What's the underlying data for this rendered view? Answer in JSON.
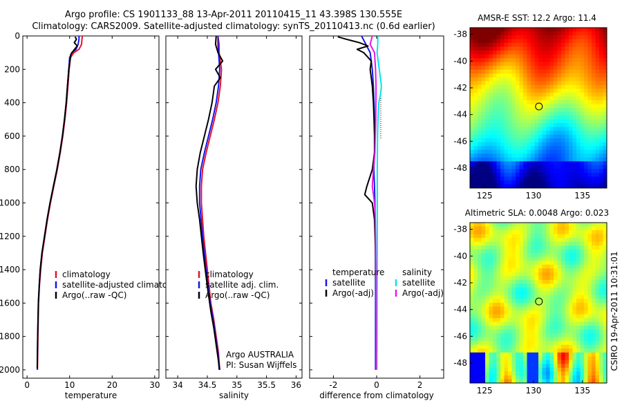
{
  "figure": {
    "title_line1": "Argo profile: CS 1901133_88 13-Apr-2011 20110415_11 43.398S 130.555E",
    "title_line2": "Climatology: CARS2009. Satellite-adjusted climatology: synTS_20110413.nc (0.6d earlier)",
    "side_credit": "CSIRO 19-Apr-2011 10:31:01",
    "colors": {
      "red": "#e8102a",
      "blue": "#1414ee",
      "black": "#000000",
      "cyan": "#00e5ee",
      "magenta": "#e618e6"
    }
  },
  "chart_data": [
    {
      "id": "temperature",
      "type": "line",
      "xlabel": "temperature",
      "xlim": [
        -1,
        31
      ],
      "xticks": [
        0,
        10,
        20,
        30
      ],
      "ylim": [
        0,
        2050
      ],
      "yticks": [
        0,
        200,
        400,
        600,
        800,
        1000,
        1200,
        1400,
        1600,
        1800,
        2000
      ],
      "legend": [
        "climatology",
        "satellite-adjusted climatology",
        "Argo(..raw -QC)"
      ],
      "series": [
        {
          "name": "climatology",
          "color": "red",
          "x": [
            13.0,
            12.9,
            12.8,
            12.2,
            11.0,
            10.2,
            9.9,
            9.6,
            9.3,
            8.9,
            8.4,
            7.8,
            7.1,
            6.3,
            5.5,
            4.8,
            4.2,
            3.6,
            3.2,
            2.9,
            2.7,
            2.55,
            2.45
          ],
          "y": [
            0,
            20,
            50,
            80,
            100,
            130,
            200,
            300,
            400,
            500,
            600,
            700,
            800,
            900,
            1000,
            1100,
            1200,
            1300,
            1400,
            1500,
            1600,
            1800,
            2000
          ]
        },
        {
          "name": "satellite-adjusted climatology",
          "color": "blue",
          "x": [
            12.2,
            12.2,
            12.0,
            11.5,
            10.5,
            10.0,
            9.8,
            9.5,
            9.2,
            8.8,
            8.3,
            7.7,
            7.0,
            6.2,
            5.4,
            4.7,
            4.1,
            3.5,
            3.1,
            2.85,
            2.65,
            2.5,
            2.4
          ],
          "y": [
            0,
            20,
            50,
            80,
            100,
            130,
            200,
            300,
            400,
            500,
            600,
            700,
            800,
            900,
            1000,
            1100,
            1200,
            1300,
            1400,
            1500,
            1600,
            1800,
            2000
          ]
        },
        {
          "name": "Argo(..raw -QC)",
          "color": "black",
          "x": [
            11.3,
            11.6,
            11.1,
            11.8,
            11.0,
            10.3,
            9.8,
            9.5,
            9.2,
            8.8,
            8.3,
            7.7,
            7.0,
            6.2,
            5.4,
            4.7,
            4.1,
            3.5,
            3.1,
            2.85,
            2.65,
            2.5,
            2.4
          ],
          "y": [
            5,
            20,
            40,
            60,
            85,
            110,
            200,
            300,
            400,
            500,
            600,
            700,
            800,
            900,
            1000,
            1100,
            1200,
            1300,
            1400,
            1500,
            1600,
            1800,
            1990
          ]
        }
      ]
    },
    {
      "id": "salinity",
      "type": "line",
      "xlabel": "salinity",
      "xlim": [
        33.8,
        36.1
      ],
      "xticks": [
        34,
        34.5,
        35,
        35.5,
        36
      ],
      "ylim": [
        0,
        2050
      ],
      "legend": [
        "climatology",
        "satellite adj. clim.",
        "Argo(..raw -QC)"
      ],
      "annotation": [
        "Argo AUSTRALIA",
        "PI: Susan Wijffels"
      ],
      "series": [
        {
          "name": "climatology",
          "color": "red",
          "x": [
            34.68,
            34.7,
            34.7,
            34.74,
            34.72,
            34.68,
            34.62,
            34.55,
            34.48,
            34.42,
            34.4,
            34.4,
            34.44,
            34.5,
            34.56,
            34.61,
            34.65,
            34.69,
            34.71
          ],
          "y": [
            0,
            50,
            100,
            200,
            300,
            400,
            500,
            600,
            700,
            800,
            900,
            1000,
            1200,
            1400,
            1600,
            1700,
            1800,
            1900,
            2000
          ]
        },
        {
          "name": "satellite adj. clim.",
          "color": "blue",
          "x": [
            34.68,
            34.68,
            34.69,
            34.71,
            34.69,
            34.65,
            34.59,
            34.52,
            34.45,
            34.39,
            34.37,
            34.37,
            34.42,
            34.48,
            34.55,
            34.6,
            34.64,
            34.68,
            34.7
          ],
          "y": [
            0,
            50,
            100,
            200,
            300,
            400,
            500,
            600,
            700,
            800,
            900,
            1000,
            1200,
            1400,
            1600,
            1700,
            1800,
            1900,
            2000
          ]
        },
        {
          "name": "Argo(..raw -QC)",
          "color": "black",
          "x": [
            34.65,
            34.64,
            34.68,
            34.76,
            34.64,
            34.72,
            34.62,
            34.58,
            34.52,
            34.45,
            34.38,
            34.33,
            34.31,
            34.33,
            34.37,
            34.43,
            34.5,
            34.56,
            34.61,
            34.65,
            34.69,
            34.71
          ],
          "y": [
            0,
            50,
            100,
            150,
            200,
            250,
            300,
            400,
            500,
            600,
            700,
            800,
            900,
            1000,
            1100,
            1300,
            1500,
            1650,
            1750,
            1850,
            1950,
            2000
          ]
        }
      ]
    },
    {
      "id": "difference",
      "type": "line",
      "xlabel": "difference from climatology",
      "xlim": [
        -3.1,
        3.1
      ],
      "xticks": [
        -2,
        0,
        2
      ],
      "ylim": [
        0,
        2050
      ],
      "legend_left_title": "temperature",
      "legend_right_title": "salinity",
      "legend_left": [
        "satellite",
        "Argo(-adj)"
      ],
      "legend_right": [
        "satellite",
        "Argo(-adj)"
      ],
      "series": [
        {
          "name": "temperature satellite",
          "color": "blue",
          "x": [
            -0.7,
            -0.5,
            -0.3,
            -0.2,
            -0.15,
            -0.12,
            -0.1,
            -0.08,
            -0.1,
            -0.13,
            -0.1,
            -0.08,
            -0.06,
            -0.05,
            -0.05
          ],
          "y": [
            0,
            50,
            100,
            200,
            300,
            400,
            500,
            600,
            700,
            800,
            900,
            1000,
            1200,
            1500,
            2000
          ]
        },
        {
          "name": "temperature Argo(-adj)",
          "color": "black",
          "x": [
            -1.8,
            -1.4,
            -0.8,
            -0.4,
            -0.9,
            -0.6,
            -0.25,
            -0.3,
            -0.2,
            -0.15,
            -0.12,
            -0.1,
            -0.1,
            -0.2,
            -0.45,
            -0.55,
            -0.2,
            -0.1,
            -0.05,
            -0.03,
            -0.02
          ],
          "y": [
            5,
            20,
            40,
            60,
            80,
            100,
            150,
            200,
            300,
            400,
            500,
            600,
            700,
            800,
            900,
            950,
            1000,
            1100,
            1300,
            1600,
            2000
          ]
        },
        {
          "name": "salinity satellite",
          "color": "cyan",
          "x": [
            0.05,
            0.05,
            0.02,
            0.12,
            0.22,
            0.18,
            0.1,
            0.06,
            0.04,
            0.03,
            0.03,
            0.03,
            0.02,
            0.01
          ],
          "y": [
            0,
            50,
            100,
            200,
            300,
            350,
            400,
            500,
            600,
            800,
            1000,
            1400,
            1800,
            2000
          ]
        },
        {
          "name": "salinity Argo(-adj)",
          "color": "magenta",
          "x": [
            -0.2,
            -0.3,
            -0.1,
            -0.05,
            -0.03,
            -0.04,
            -0.08,
            -0.15,
            -0.2,
            -0.15,
            -0.1,
            -0.06,
            -0.04,
            -0.03,
            -0.02,
            -0.02
          ],
          "y": [
            0,
            50,
            100,
            200,
            300,
            500,
            700,
            800,
            900,
            950,
            1000,
            1100,
            1300,
            1500,
            1800,
            2000
          ]
        }
      ]
    },
    {
      "id": "sst_map",
      "type": "heatmap",
      "title": "AMSR-E SST: 12.2 Argo: 11.4",
      "xlim": [
        123.5,
        137.5
      ],
      "ylim": [
        -49.5,
        -37.5
      ],
      "xticks": [
        125,
        130,
        135
      ],
      "yticks": [
        -38,
        -40,
        -42,
        -44,
        -46,
        -48
      ],
      "marker": {
        "lon": 130.555,
        "lat": -43.398
      }
    },
    {
      "id": "sla_map",
      "type": "heatmap",
      "title": "Altimetric SLA: 0.0048 Argo: 0.023",
      "xlim": [
        123.5,
        137.5
      ],
      "ylim": [
        -49.5,
        -37.5
      ],
      "xticks": [
        125,
        130,
        135
      ],
      "yticks": [
        -38,
        -40,
        -42,
        -44,
        -46,
        -48
      ],
      "marker": {
        "lon": 130.555,
        "lat": -43.398
      }
    }
  ]
}
